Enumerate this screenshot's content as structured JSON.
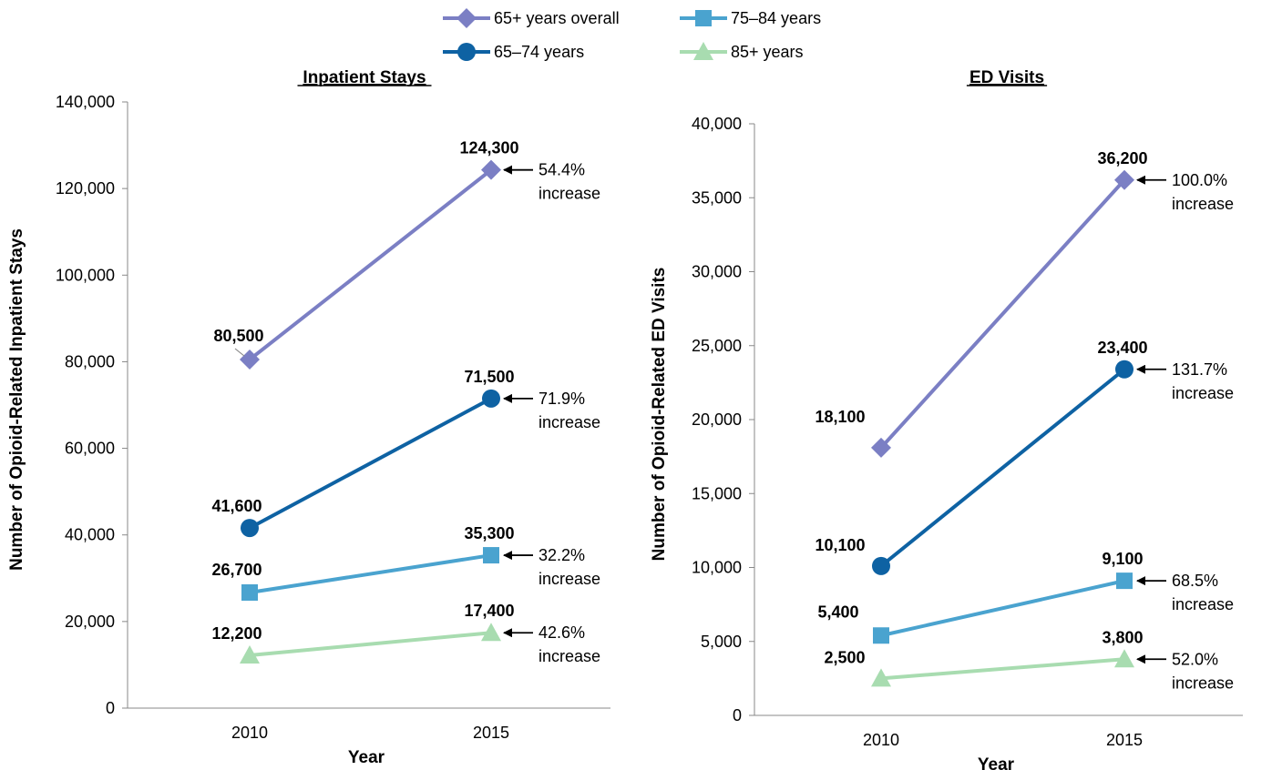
{
  "legend": [
    {
      "name": "65+ years overall",
      "color": "#7b7fc4",
      "marker": "diamond"
    },
    {
      "name": "75–84 years",
      "color": "#4aa3cf",
      "marker": "square"
    },
    {
      "name": "65–74 years",
      "color": "#0e62a3",
      "marker": "circle"
    },
    {
      "name": "85+ years",
      "color": "#a8dcb0",
      "marker": "triangle"
    }
  ],
  "chart_data": [
    {
      "type": "line",
      "title": "Inpatient Stays",
      "xlabel": "Year",
      "ylabel": "Number of Opioid-Related Inpatient Stays",
      "categories": [
        "2010",
        "2015"
      ],
      "ylim": [
        0,
        140000
      ],
      "yticks": [
        0,
        20000,
        40000,
        60000,
        80000,
        100000,
        120000,
        140000
      ],
      "ytick_labels": [
        "0",
        "20,000",
        "40,000",
        "60,000",
        "80,000",
        "100,000",
        "120,000",
        "140,000"
      ],
      "grid": false,
      "series": [
        {
          "name": "65+ years overall",
          "values": [
            80500,
            124300
          ],
          "labels": [
            "80,500",
            "124,300"
          ],
          "annotation": [
            "54.4%",
            "increase"
          ]
        },
        {
          "name": "65–74 years",
          "values": [
            41600,
            71500
          ],
          "labels": [
            "41,600",
            "71,500"
          ],
          "annotation": [
            "71.9%",
            "increase"
          ]
        },
        {
          "name": "75–84 years",
          "values": [
            26700,
            35300
          ],
          "labels": [
            "26,700",
            "35,300"
          ],
          "annotation": [
            "32.2%",
            "increase"
          ]
        },
        {
          "name": "85+ years",
          "values": [
            12200,
            17400
          ],
          "labels": [
            "12,200",
            "17,400"
          ],
          "annotation": [
            "42.6%",
            "increase"
          ]
        }
      ]
    },
    {
      "type": "line",
      "title": "ED Visits",
      "xlabel": "Year",
      "ylabel": "Number of Opioid-Related ED Visits",
      "categories": [
        "2010",
        "2015"
      ],
      "ylim": [
        0,
        40000
      ],
      "yticks": [
        0,
        5000,
        10000,
        15000,
        20000,
        25000,
        30000,
        35000,
        40000
      ],
      "ytick_labels": [
        "0",
        "5,000",
        "10,000",
        "15,000",
        "20,000",
        "25,000",
        "30,000",
        "35,000",
        "40,000"
      ],
      "grid": false,
      "series": [
        {
          "name": "65+ years overall",
          "values": [
            18100,
            36200
          ],
          "labels": [
            "18,100",
            "36,200"
          ],
          "annotation": [
            "100.0%",
            "increase"
          ]
        },
        {
          "name": "65–74 years",
          "values": [
            10100,
            23400
          ],
          "labels": [
            "10,100",
            "23,400"
          ],
          "annotation": [
            "131.7%",
            "increase"
          ]
        },
        {
          "name": "75–84 years",
          "values": [
            5400,
            9100
          ],
          "labels": [
            "5,400",
            "9,100"
          ],
          "annotation": [
            "68.5%",
            "increase"
          ]
        },
        {
          "name": "85+ years",
          "values": [
            2500,
            3800
          ],
          "labels": [
            "2,500",
            "3,800"
          ],
          "annotation": [
            "52.0%",
            "increase"
          ]
        }
      ]
    }
  ]
}
